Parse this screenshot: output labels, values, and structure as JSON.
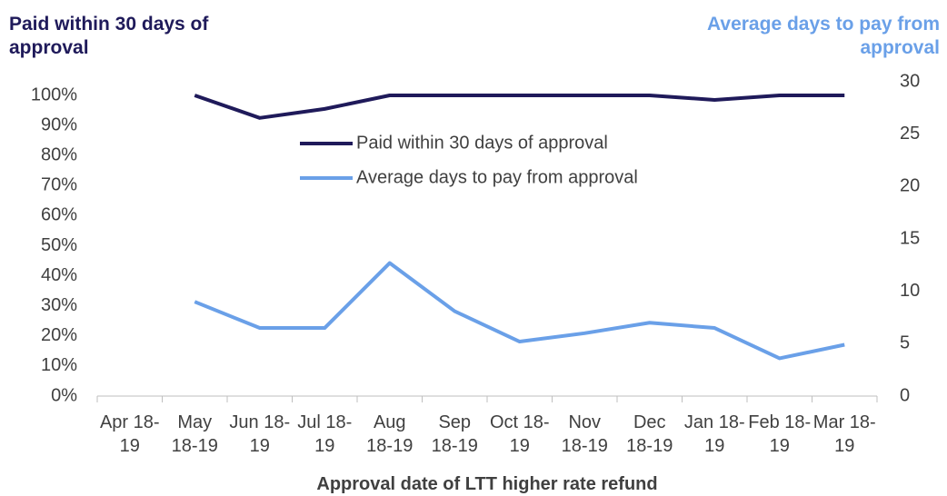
{
  "chart_data": {
    "type": "line",
    "y_title": "Paid within 30 days of approval",
    "y2_title": "Average days to pay from approval",
    "x_title": "Approval date of LTT higher rate refund",
    "categories": [
      "Apr 18-19",
      "May 18-19",
      "Jun 18-19",
      "Jul 18-19",
      "Aug 18-19",
      "Sep 18-19",
      "Oct 18-19",
      "Nov 18-19",
      "Dec 18-19",
      "Jan 18-19",
      "Feb 18-19",
      "Mar 18-19"
    ],
    "series": [
      {
        "name": "Paid within 30 days of approval",
        "color": "#1f1a5a",
        "values": [
          null,
          100,
          92.5,
          95.5,
          100,
          100,
          100,
          100,
          100,
          98.5,
          100,
          100
        ]
      },
      {
        "name": "Average days to pay from approval",
        "color": "#6aa0e8",
        "axis": "y2",
        "values": [
          null,
          9.0,
          6.5,
          6.5,
          12.7,
          8.1,
          5.2,
          6.0,
          7.0,
          6.5,
          3.6,
          4.9
        ]
      }
    ],
    "ylim": [
      0,
      100
    ],
    "yticks": [
      {
        "value": 0,
        "label": "0%"
      },
      {
        "value": 10,
        "label": "10%"
      },
      {
        "value": 20,
        "label": "20%"
      },
      {
        "value": 30,
        "label": "30%"
      },
      {
        "value": 40,
        "label": "40%"
      },
      {
        "value": 50,
        "label": "50%"
      },
      {
        "value": 60,
        "label": "60%"
      },
      {
        "value": 70,
        "label": "70%"
      },
      {
        "value": 80,
        "label": "80%"
      },
      {
        "value": 90,
        "label": "90%"
      },
      {
        "value": 100,
        "label": "100%"
      }
    ],
    "y2lim": [
      0,
      30
    ],
    "y2ticks": [
      0,
      5,
      10,
      15,
      20,
      25,
      30
    ],
    "grid": false
  }
}
